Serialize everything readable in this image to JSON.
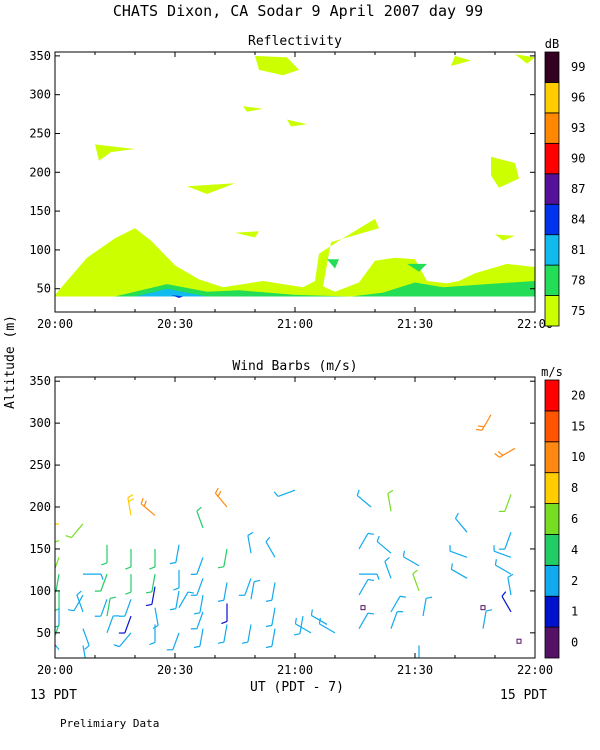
{
  "figure": {
    "title": "CHATS Dixon, CA  Sodar   9 April 2007   day  99",
    "ylabel": "Altitude (m)",
    "xlabel": "UT  (PDT - 7)",
    "left_note": "13 PDT",
    "right_note": "15 PDT",
    "footer": "Prelimiary Data"
  },
  "chart_data": [
    {
      "type": "heatmap",
      "title": "Reflectivity",
      "x_tick_labels": [
        "20:00",
        "20:30",
        "21:00",
        "21:30",
        "22:00"
      ],
      "x_ticks": [
        0,
        30,
        60,
        90,
        120
      ],
      "xlim": [
        0,
        120
      ],
      "y_ticks": [
        50,
        100,
        150,
        200,
        250,
        300,
        350
      ],
      "ylim": [
        20,
        355
      ],
      "colorbar": {
        "unit": "dB",
        "levels": [
          75,
          78,
          81,
          84,
          87,
          90,
          93,
          96,
          99
        ],
        "colors": [
          "#ccff00",
          "#22dd55",
          "#11bbee",
          "#0033ee",
          "#551199",
          "#ff0000",
          "#ff8800",
          "#ffcc00",
          "#330022"
        ]
      },
      "contours": [
        {
          "level": 75,
          "points": [
            [
              0,
              40
            ],
            [
              120,
              40
            ],
            [
              120,
              78
            ],
            [
              113,
              82
            ],
            [
              105,
              70
            ],
            [
              101,
              60
            ],
            [
              98,
              57
            ],
            [
              93,
              60
            ],
            [
              90,
              88
            ],
            [
              85,
              90
            ],
            [
              80,
              86
            ],
            [
              76,
              58
            ],
            [
              70,
              46
            ],
            [
              67,
              53
            ],
            [
              69,
              110
            ],
            [
              81,
              128
            ],
            [
              80,
              140
            ],
            [
              72,
              115
            ],
            [
              66,
              95
            ],
            [
              65,
              60
            ],
            [
              62,
              52
            ],
            [
              58,
              55
            ],
            [
              52,
              60
            ],
            [
              42,
              52
            ],
            [
              36,
              62
            ],
            [
              30,
              80
            ],
            [
              24,
              112
            ],
            [
              20,
              128
            ],
            [
              15,
              115
            ],
            [
              8,
              90
            ],
            [
              0,
              42
            ]
          ]
        },
        {
          "level": 75,
          "points": [
            [
              50,
              350
            ],
            [
              58,
              348
            ],
            [
              61,
              332
            ],
            [
              57,
              325
            ],
            [
              51,
              332
            ],
            [
              50,
              350
            ]
          ]
        },
        {
          "level": 75,
          "points": [
            [
              10,
              236
            ],
            [
              20,
              230
            ],
            [
              14,
              226
            ],
            [
              11,
              215
            ],
            [
              10,
              236
            ]
          ]
        },
        {
          "level": 75,
          "points": [
            [
              33,
              182
            ],
            [
              45,
              186
            ],
            [
              38,
              172
            ],
            [
              33,
              182
            ]
          ]
        },
        {
          "level": 75,
          "points": [
            [
              47,
              285
            ],
            [
              52,
              282
            ],
            [
              48,
              278
            ],
            [
              47,
              285
            ]
          ]
        },
        {
          "level": 75,
          "points": [
            [
              58,
              268
            ],
            [
              63,
              262
            ],
            [
              59,
              259
            ],
            [
              58,
              268
            ]
          ]
        },
        {
          "level": 75,
          "points": [
            [
              45,
              122
            ],
            [
              51,
              124
            ],
            [
              50,
              116
            ],
            [
              45,
              122
            ]
          ]
        },
        {
          "level": 75,
          "points": [
            [
              100,
              350
            ],
            [
              104,
              344
            ],
            [
              99,
              337
            ],
            [
              100,
              350
            ]
          ]
        },
        {
          "level": 75,
          "points": [
            [
              115,
              352
            ],
            [
              120,
              348
            ],
            [
              118,
              340
            ],
            [
              115,
              352
            ]
          ]
        },
        {
          "level": 75,
          "points": [
            [
              109,
              220
            ],
            [
              115,
              212
            ],
            [
              116,
              192
            ],
            [
              111,
              180
            ],
            [
              109,
              196
            ],
            [
              109,
              220
            ]
          ]
        },
        {
          "level": 75,
          "points": [
            [
              110,
              120
            ],
            [
              115,
              118
            ],
            [
              112,
              112
            ],
            [
              110,
              120
            ]
          ]
        },
        {
          "level": 78,
          "points": [
            [
              15,
              40
            ],
            [
              28,
              56
            ],
            [
              38,
              46
            ],
            [
              46,
              48
            ],
            [
              60,
              42
            ],
            [
              74,
              40
            ],
            [
              82,
              45
            ],
            [
              90,
              58
            ],
            [
              97,
              52
            ],
            [
              108,
              56
            ],
            [
              120,
              60
            ],
            [
              120,
              40
            ],
            [
              15,
              40
            ]
          ]
        },
        {
          "level": 78,
          "points": [
            [
              68,
              88
            ],
            [
              70,
              76
            ],
            [
              71,
              88
            ],
            [
              68,
              88
            ]
          ]
        },
        {
          "level": 78,
          "points": [
            [
              88,
              82
            ],
            [
              91,
              72
            ],
            [
              93,
              82
            ],
            [
              88,
              82
            ]
          ]
        },
        {
          "level": 81,
          "points": [
            [
              20,
              40
            ],
            [
              28,
              50
            ],
            [
              38,
              40
            ],
            [
              20,
              40
            ]
          ]
        },
        {
          "level": 84,
          "points": [
            [
              29,
              42
            ],
            [
              32,
              40
            ],
            [
              31,
              38
            ],
            [
              29,
              42
            ]
          ]
        }
      ]
    },
    {
      "type": "scatter",
      "title": "Wind Barbs (m/s)",
      "x_tick_labels": [
        "20:00",
        "20:30",
        "21:00",
        "21:30",
        "22:00"
      ],
      "x_ticks": [
        0,
        30,
        60,
        90,
        120
      ],
      "xlim": [
        0,
        120
      ],
      "y_ticks": [
        50,
        100,
        150,
        200,
        250,
        300,
        350
      ],
      "ylim": [
        20,
        355
      ],
      "colorbar": {
        "unit": "m/s",
        "levels": [
          0,
          1,
          2,
          4,
          6,
          8,
          10,
          15,
          20
        ],
        "colors": [
          "#551166",
          "#0011cc",
          "#11aaee",
          "#22cc66",
          "#77dd22",
          "#ffcc00",
          "#ff8811",
          "#ff5500",
          "#ff0000"
        ]
      },
      "barbs": [
        {
          "t": 1,
          "alt": 180,
          "speed": 8,
          "dir": 260
        },
        {
          "t": 1,
          "alt": 160,
          "speed": 6,
          "dir": 250
        },
        {
          "t": 1,
          "alt": 140,
          "speed": 6,
          "dir": 200
        },
        {
          "t": 1,
          "alt": 120,
          "speed": 5,
          "dir": 190
        },
        {
          "t": 1,
          "alt": 100,
          "speed": 4,
          "dir": 180
        },
        {
          "t": 1,
          "alt": 80,
          "speed": 3,
          "dir": 180
        },
        {
          "t": 1,
          "alt": 60,
          "speed": 5,
          "dir": 200
        },
        {
          "t": 1,
          "alt": 30,
          "speed": 3,
          "dir": 320
        },
        {
          "t": 7,
          "alt": 180,
          "speed": 6,
          "dir": 220
        },
        {
          "t": 7,
          "alt": 120,
          "speed": 3,
          "dir": 90
        },
        {
          "t": 7,
          "alt": 95,
          "speed": 2,
          "dir": 210
        },
        {
          "t": 7,
          "alt": 75,
          "speed": 3,
          "dir": 340
        },
        {
          "t": 7,
          "alt": 55,
          "speed": 3,
          "dir": 160
        },
        {
          "t": 7,
          "alt": 35,
          "speed": 3,
          "dir": 170
        },
        {
          "t": 13,
          "alt": 155,
          "speed": 4,
          "dir": 180
        },
        {
          "t": 13,
          "alt": 120,
          "speed": 5,
          "dir": 200
        },
        {
          "t": 13,
          "alt": 90,
          "speed": 2,
          "dir": 200
        },
        {
          "t": 13,
          "alt": 70,
          "speed": 4,
          "dir": 10
        },
        {
          "t": 13,
          "alt": 50,
          "speed": 3,
          "dir": 20
        },
        {
          "t": 19,
          "alt": 190,
          "speed": 8,
          "dir": 350
        },
        {
          "t": 19,
          "alt": 150,
          "speed": 5,
          "dir": 180
        },
        {
          "t": 19,
          "alt": 120,
          "speed": 4,
          "dir": 180
        },
        {
          "t": 19,
          "alt": 90,
          "speed": 3,
          "dir": 200
        },
        {
          "t": 19,
          "alt": 70,
          "speed": 1,
          "dir": 200
        },
        {
          "t": 19,
          "alt": 50,
          "speed": 2,
          "dir": 220
        },
        {
          "t": 25,
          "alt": 190,
          "speed": 10,
          "dir": 310
        },
        {
          "t": 25,
          "alt": 150,
          "speed": 5,
          "dir": 180
        },
        {
          "t": 25,
          "alt": 120,
          "speed": 5,
          "dir": 190
        },
        {
          "t": 25,
          "alt": 105,
          "speed": 1,
          "dir": 190
        },
        {
          "t": 25,
          "alt": 80,
          "speed": 3,
          "dir": 170
        },
        {
          "t": 25,
          "alt": 60,
          "speed": 3,
          "dir": 180
        },
        {
          "t": 31,
          "alt": 155,
          "speed": 3,
          "dir": 190
        },
        {
          "t": 31,
          "alt": 125,
          "speed": 3,
          "dir": 180
        },
        {
          "t": 31,
          "alt": 100,
          "speed": 3,
          "dir": 190
        },
        {
          "t": 31,
          "alt": 80,
          "speed": 3,
          "dir": 30
        },
        {
          "t": 31,
          "alt": 50,
          "speed": 3,
          "dir": 200
        },
        {
          "t": 37,
          "alt": 175,
          "speed": 5,
          "dir": 340
        },
        {
          "t": 37,
          "alt": 140,
          "speed": 3,
          "dir": 200
        },
        {
          "t": 37,
          "alt": 115,
          "speed": 2,
          "dir": 200
        },
        {
          "t": 37,
          "alt": 95,
          "speed": 2,
          "dir": 190
        },
        {
          "t": 37,
          "alt": 75,
          "speed": 2,
          "dir": 200
        },
        {
          "t": 37,
          "alt": 55,
          "speed": 3,
          "dir": 190
        },
        {
          "t": 43,
          "alt": 200,
          "speed": 10,
          "dir": 320
        },
        {
          "t": 43,
          "alt": 150,
          "speed": 4,
          "dir": 190
        },
        {
          "t": 43,
          "alt": 110,
          "speed": 2,
          "dir": 190
        },
        {
          "t": 43,
          "alt": 85,
          "speed": 1,
          "dir": 180
        },
        {
          "t": 43,
          "alt": 60,
          "speed": 2,
          "dir": 190
        },
        {
          "t": 49,
          "alt": 145,
          "speed": 3,
          "dir": 350
        },
        {
          "t": 49,
          "alt": 115,
          "speed": 3,
          "dir": 200
        },
        {
          "t": 49,
          "alt": 90,
          "speed": 3,
          "dir": 10
        },
        {
          "t": 49,
          "alt": 60,
          "speed": 2,
          "dir": 190
        },
        {
          "t": 55,
          "alt": 140,
          "speed": 3,
          "dir": 330
        },
        {
          "t": 55,
          "alt": 110,
          "speed": 3,
          "dir": 190
        },
        {
          "t": 55,
          "alt": 80,
          "speed": 3,
          "dir": 190
        },
        {
          "t": 55,
          "alt": 55,
          "speed": 3,
          "dir": 190
        },
        {
          "t": 60,
          "alt": 220,
          "speed": 3,
          "dir": 250
        },
        {
          "t": 62,
          "alt": 70,
          "speed": 3,
          "dir": 190
        },
        {
          "t": 64,
          "alt": 50,
          "speed": 3,
          "dir": 300
        },
        {
          "t": 68,
          "alt": 60,
          "speed": 3,
          "dir": 300
        },
        {
          "t": 70,
          "alt": 50,
          "speed": 3,
          "dir": 300
        },
        {
          "t": 76,
          "alt": 150,
          "speed": 3,
          "dir": 30
        },
        {
          "t": 76,
          "alt": 120,
          "speed": 3,
          "dir": 90
        },
        {
          "t": 76,
          "alt": 95,
          "speed": 3,
          "dir": 30
        },
        {
          "t": 77,
          "alt": 80,
          "speed": 0,
          "dir": 0
        },
        {
          "t": 76,
          "alt": 55,
          "speed": 3,
          "dir": 30
        },
        {
          "t": 79,
          "alt": 200,
          "speed": 2,
          "dir": 310
        },
        {
          "t": 84,
          "alt": 195,
          "speed": 6,
          "dir": 350
        },
        {
          "t": 84,
          "alt": 145,
          "speed": 3,
          "dir": 310
        },
        {
          "t": 84,
          "alt": 115,
          "speed": 3,
          "dir": 340
        },
        {
          "t": 84,
          "alt": 75,
          "speed": 3,
          "dir": 30
        },
        {
          "t": 84,
          "alt": 55,
          "speed": 3,
          "dir": 20
        },
        {
          "t": 91,
          "alt": 130,
          "speed": 3,
          "dir": 300
        },
        {
          "t": 91,
          "alt": 100,
          "speed": 6,
          "dir": 340
        },
        {
          "t": 92,
          "alt": 70,
          "speed": 3,
          "dir": 10
        },
        {
          "t": 91,
          "alt": 35,
          "speed": 3,
          "dir": 180
        },
        {
          "t": 103,
          "alt": 170,
          "speed": 3,
          "dir": 320
        },
        {
          "t": 103,
          "alt": 140,
          "speed": 3,
          "dir": 290
        },
        {
          "t": 103,
          "alt": 115,
          "speed": 3,
          "dir": 300
        },
        {
          "t": 107,
          "alt": 80,
          "speed": 0,
          "dir": 0
        },
        {
          "t": 107,
          "alt": 55,
          "speed": 3,
          "dir": 10
        },
        {
          "t": 109,
          "alt": 310,
          "speed": 10,
          "dir": 210
        },
        {
          "t": 115,
          "alt": 270,
          "speed": 10,
          "dir": 240
        },
        {
          "t": 114,
          "alt": 215,
          "speed": 6,
          "dir": 200
        },
        {
          "t": 114,
          "alt": 170,
          "speed": 3,
          "dir": 200
        },
        {
          "t": 114,
          "alt": 140,
          "speed": 3,
          "dir": 290
        },
        {
          "t": 114,
          "alt": 120,
          "speed": 3,
          "dir": 300
        },
        {
          "t": 114,
          "alt": 95,
          "speed": 3,
          "dir": 350
        },
        {
          "t": 114,
          "alt": 75,
          "speed": 1,
          "dir": 330
        },
        {
          "t": 116,
          "alt": 40,
          "speed": 0,
          "dir": 0
        }
      ]
    }
  ]
}
